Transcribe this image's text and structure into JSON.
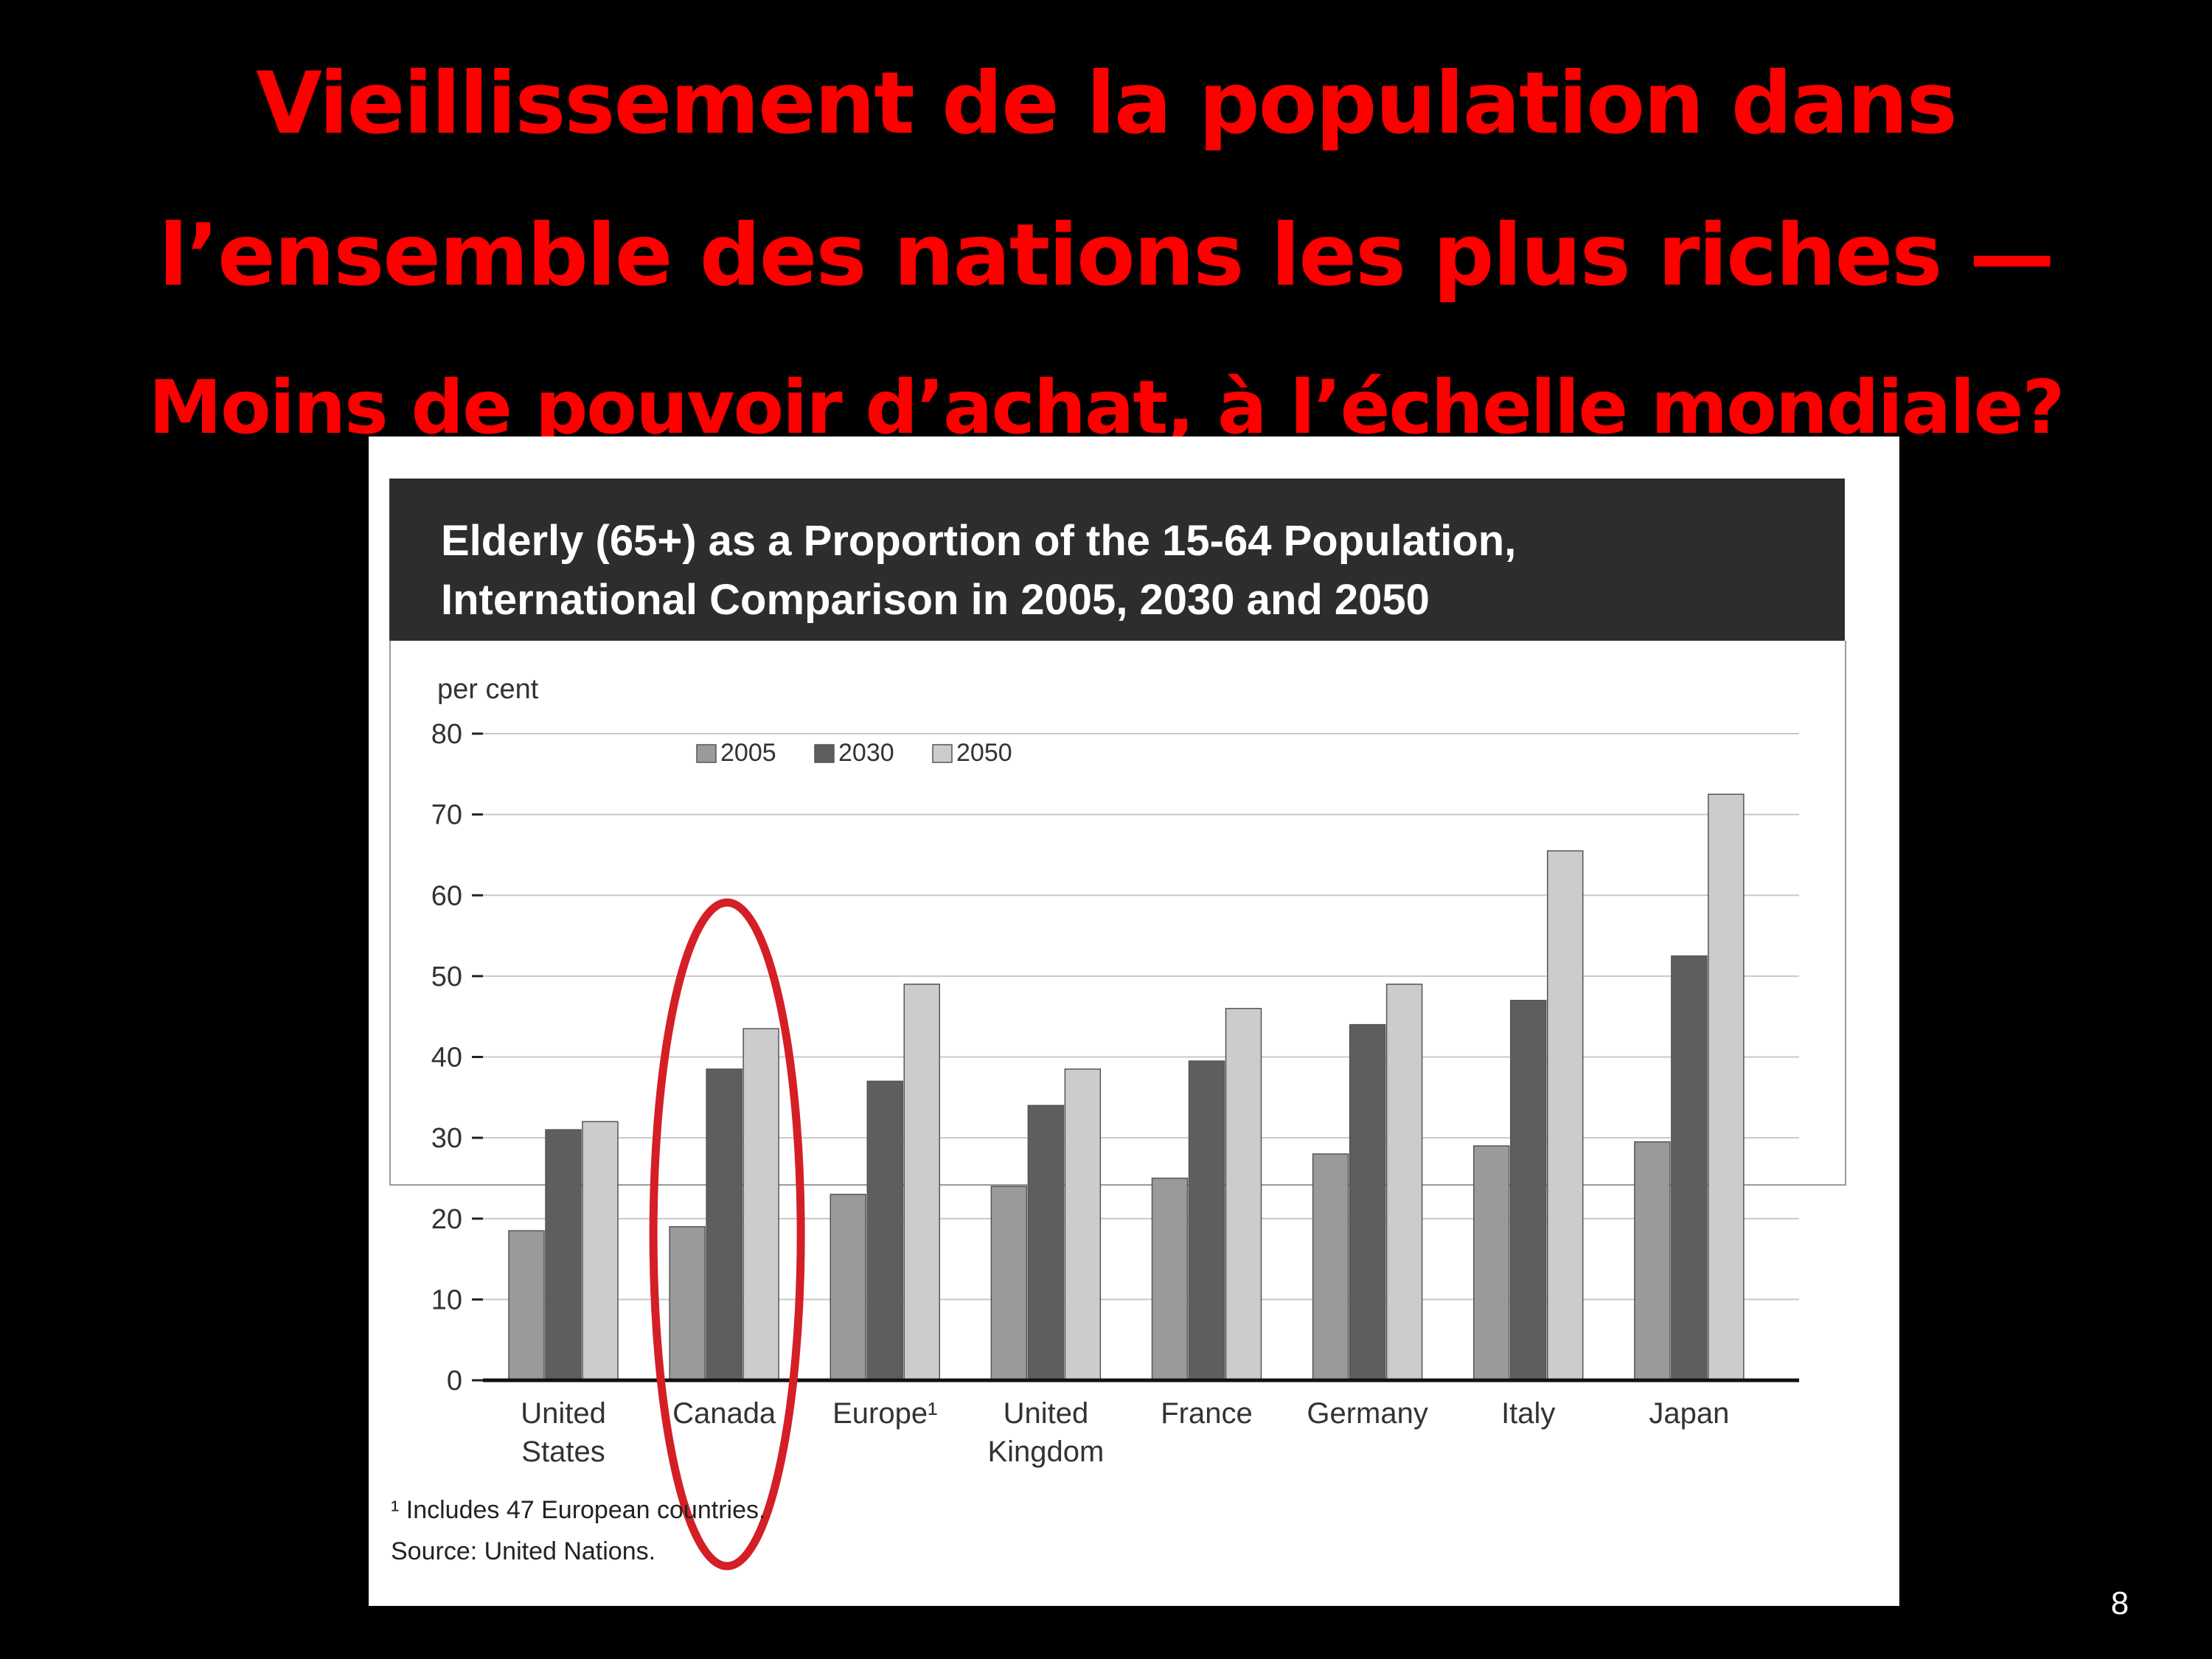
{
  "slide": {
    "title_main": "Vieillissement de la population dans l’ensemble des nations les plus riches —",
    "title_sub": "Moins de pouvoir d’achat, à l’échelle mondiale?",
    "page_number": "8"
  },
  "colors": {
    "title": "#ff0000",
    "series_2005": "#9a9a9a",
    "series_2030": "#5e5e5e",
    "series_2050": "#cccccc",
    "highlight_ellipse": "#d41f26"
  },
  "highlight": {
    "category": "Canada"
  },
  "chart_data": {
    "type": "bar",
    "title": "Elderly (65+) as a Proportion of the 15-64 Population,\nInternational Comparison in 2005, 2030 and 2050",
    "ylabel": "per cent",
    "ylim": [
      0,
      80
    ],
    "yticks": [
      "0",
      "10",
      "20",
      "30",
      "40",
      "50",
      "60",
      "70",
      "80"
    ],
    "grid": true,
    "legend_position": "top-left",
    "categories": [
      "United\nStates",
      "Canada",
      "Europe¹",
      "United\nKingdom",
      "France",
      "Germany",
      "Italy",
      "Japan"
    ],
    "series": [
      {
        "name": "2005",
        "values": [
          18.5,
          19,
          23,
          24,
          25,
          28,
          29,
          29.5
        ]
      },
      {
        "name": "2030",
        "values": [
          31,
          38.5,
          37,
          34,
          39.5,
          44,
          47,
          52.5
        ]
      },
      {
        "name": "2050",
        "values": [
          32,
          43.5,
          49,
          38.5,
          46,
          49,
          65.5,
          72.5
        ]
      }
    ],
    "footnote": "¹ Includes 47 European countries.",
    "source": "Source: United Nations."
  }
}
